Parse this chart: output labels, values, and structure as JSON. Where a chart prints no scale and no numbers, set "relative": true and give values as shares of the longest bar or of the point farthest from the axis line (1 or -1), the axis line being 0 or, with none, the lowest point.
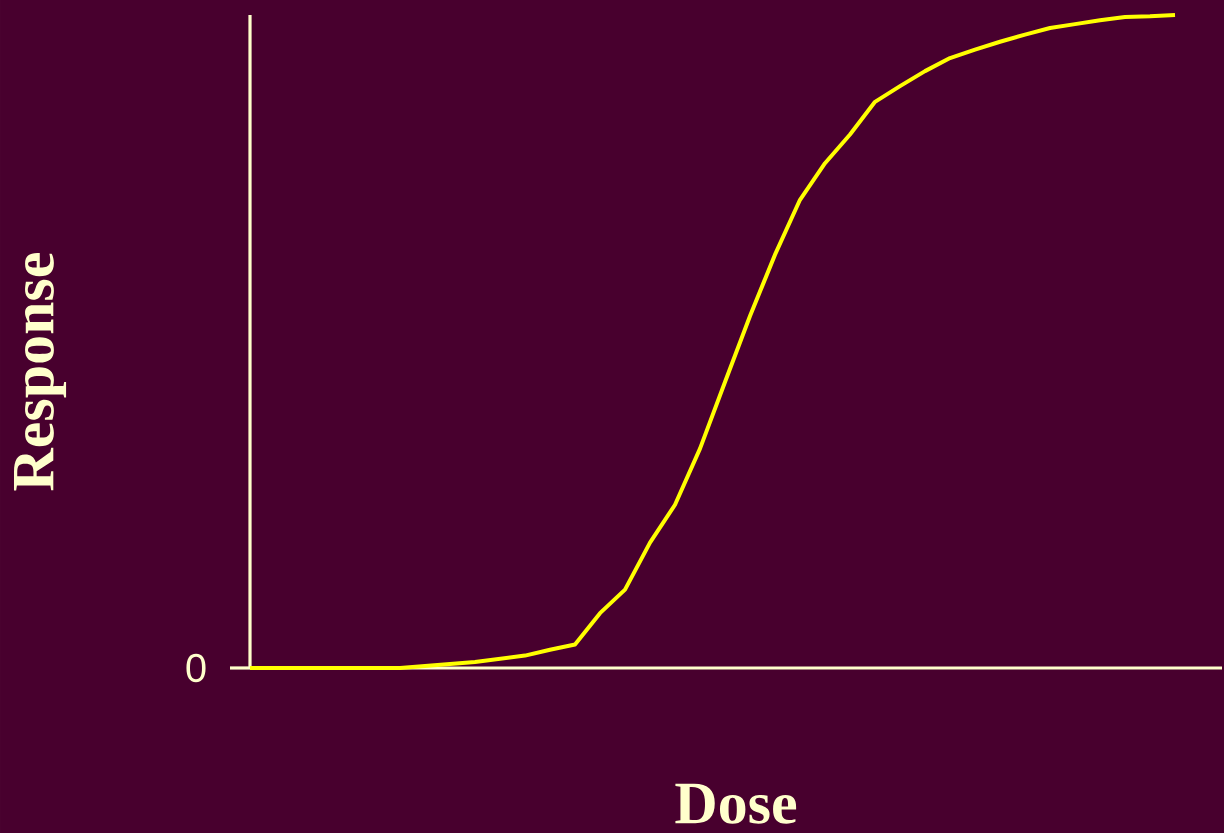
{
  "chart_data": {
    "type": "line",
    "xlabel": "Dose",
    "ylabel": "Response",
    "relative": true,
    "categories": [
      null,
      null,
      null,
      null,
      null,
      null,
      null,
      null,
      null,
      null,
      null,
      null,
      null,
      null,
      null,
      null,
      null,
      null,
      null,
      null,
      null,
      null,
      null,
      null,
      null,
      null,
      null,
      null,
      null,
      null,
      null,
      null,
      null,
      null,
      null,
      null,
      null,
      null
    ],
    "values": [
      0,
      0,
      0,
      0,
      0,
      0,
      0,
      0.003,
      0.006,
      0.009,
      0.014,
      0.019,
      0.028,
      0.036,
      0.084,
      0.12,
      0.192,
      0.25,
      0.336,
      0.438,
      0.539,
      0.633,
      0.717,
      0.773,
      0.817,
      0.867,
      0.891,
      0.914,
      0.934,
      0.947,
      0.959,
      0.97,
      0.98,
      0.986,
      0.992,
      0.997,
      0.998,
      1
    ],
    "color": "#ffff00",
    "annotations": [
      "0"
    ]
  }
}
